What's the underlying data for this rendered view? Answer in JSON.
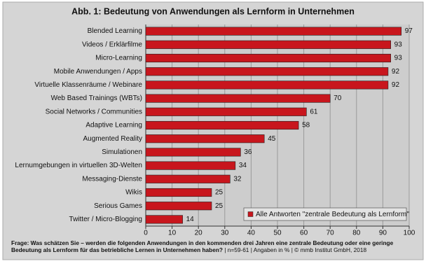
{
  "chart_data": {
    "type": "barh",
    "title": "Abb. 1: Bedeutung von Anwendungen als Lernform in Unternehmen",
    "categories": [
      "Blended Learning",
      "Videos / Erklärfilme",
      "Micro-Learning",
      "Mobile Anwendungen / Apps",
      "Virtuelle Klassenräume / Webinare",
      "Web Based Trainings (WBTs)",
      "Social Networks / Communities",
      "Adaptive Learning",
      "Augmented Reality",
      "Simulationen",
      "Lernumgebungen in virtuellen 3D-Welten",
      "Messaging-Dienste",
      "Wikis",
      "Serious Games",
      "Twitter / Micro-Blogging"
    ],
    "series": [
      {
        "name": "Alle Antworten \"zentrale Bedeutung als Lernform\"",
        "color": "#c8161d",
        "values": [
          97,
          93,
          93,
          92,
          92,
          70,
          61,
          58,
          45,
          36,
          34,
          32,
          25,
          25,
          14
        ]
      }
    ],
    "xlim": [
      0,
      100
    ],
    "xticks": [
      0,
      10,
      20,
      30,
      40,
      50,
      60,
      70,
      80,
      90,
      100
    ],
    "grid": true,
    "legend": "lower-right",
    "footnote": {
      "question": "Frage: Was schätzen Sie – werden die folgenden Anwendungen in den kommenden drei Jahren eine zentrale Bedeutung oder eine geringe Bedeutung als Lernform für das betriebliche Lernen in Unternehmen haben?",
      "source": "| n=59-61 | Angaben in % | © mmb Institut GmbH, 2018"
    }
  }
}
